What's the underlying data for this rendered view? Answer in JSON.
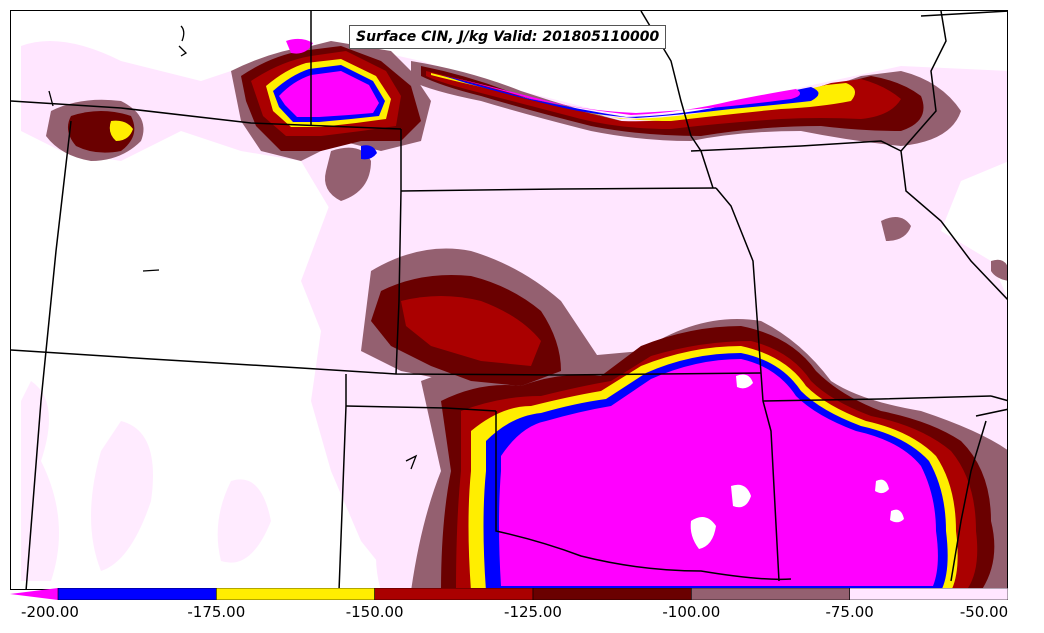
{
  "title": "Surface CIN, J/kg Valid: 201805110000",
  "colors": {
    "lt_m200": "#ff00ff",
    "m200_m175": "#0000ff",
    "m175_m150": "#ffee00",
    "m150_m125": "#aa0000",
    "m125_m100": "#6a0000",
    "m100_m75": "#946070",
    "m75_m50": "#ffe6ff",
    "boundary": "#000000"
  },
  "colorbar": {
    "ticks": [
      "-200.00",
      "-175.00",
      "-150.00",
      "-125.00",
      "-100.00",
      "-75.00",
      "-50.00"
    ],
    "values": [
      -200,
      -175,
      -150,
      -125,
      -100,
      -75,
      -50
    ],
    "segment_colors": [
      "#0000ff",
      "#ffee00",
      "#aa0000",
      "#6a0000",
      "#946070",
      "#ffe6ff"
    ],
    "underflow_color": "#ff00ff"
  }
}
